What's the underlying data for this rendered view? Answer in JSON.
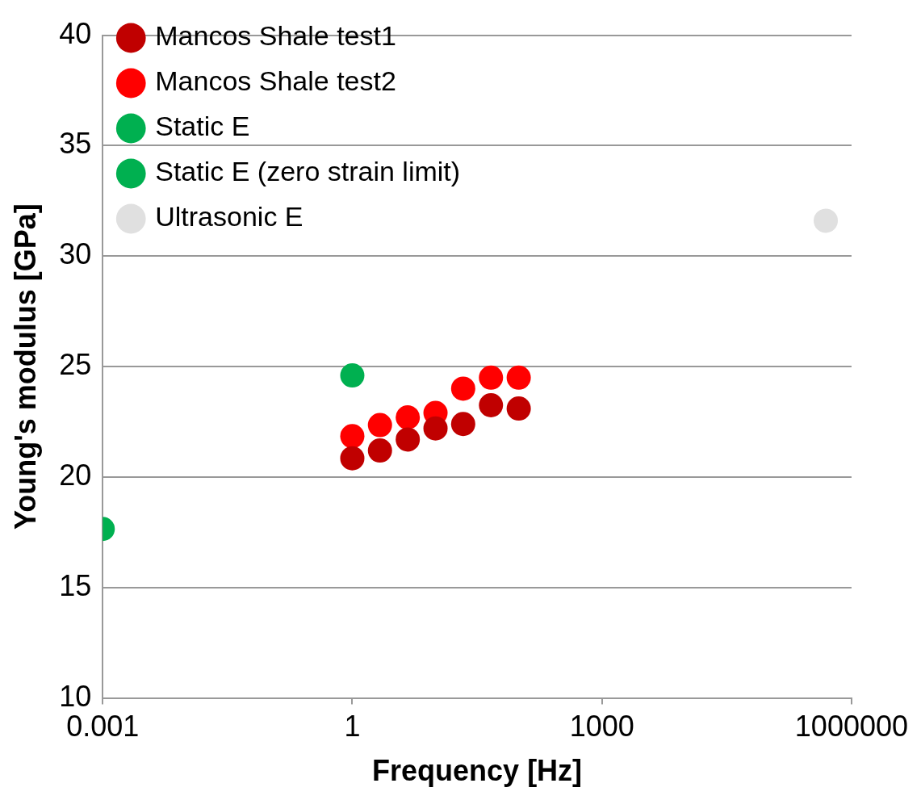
{
  "chart_data": {
    "type": "scatter",
    "xlabel": "Frequency [Hz]",
    "ylabel": "Young's modulus [GPa]",
    "log": "x",
    "xlim": [
      0.001,
      1000000
    ],
    "xticks": [
      0.001,
      1,
      1000,
      1000000
    ],
    "ylim": [
      10,
      40
    ],
    "yticks": [
      10,
      15,
      20,
      25,
      30,
      35,
      40
    ],
    "grid": "y",
    "legend": "top left",
    "marker": "circle",
    "series": [
      {
        "name": "Mancos Shale test1",
        "color": "#c00000",
        "x": [
          1,
          2.15,
          4.64,
          10,
          21.5,
          46.4,
          100
        ],
        "values": [
          20.85,
          21.2,
          21.7,
          22.2,
          22.4,
          23.25,
          23.1
        ]
      },
      {
        "name": "Mancos Shale test2",
        "color": "#ff0000",
        "x": [
          1,
          2.15,
          4.64,
          10,
          21.5,
          46.4,
          100
        ],
        "values": [
          21.85,
          22.35,
          22.7,
          22.9,
          24.0,
          24.5,
          24.5
        ]
      },
      {
        "name": "Static E",
        "color": "#00b050",
        "x": [
          0.001
        ],
        "values": [
          17.65
        ]
      },
      {
        "name": "Static E (zero strain limit)",
        "color": "#00b050",
        "x": [
          1
        ],
        "values": [
          24.6
        ]
      },
      {
        "name": "Ultrasonic E",
        "color": "#e0e0e0",
        "x": [
          490000
        ],
        "values": [
          31.6
        ]
      }
    ]
  }
}
